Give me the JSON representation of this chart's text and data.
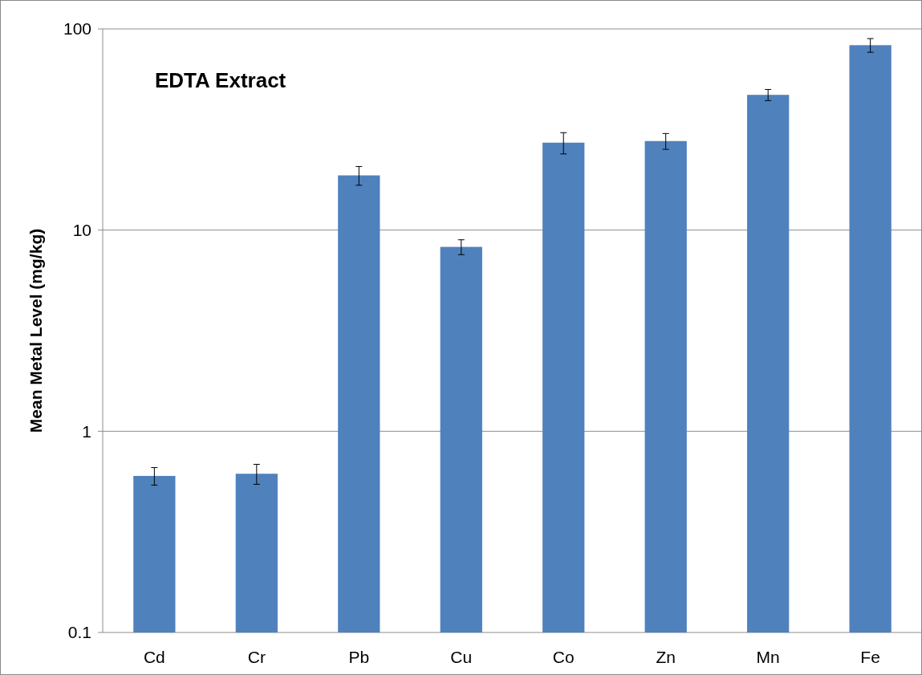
{
  "chart_data": {
    "type": "bar",
    "title": "EDTA Extract",
    "ylabel": "Mean Metal Level (mg/kg)",
    "categories": [
      "Cd",
      "Cr",
      "Pb",
      "Cu",
      "Co",
      "Zn",
      "Mn",
      "Fe"
    ],
    "values": [
      0.6,
      0.615,
      18.7,
      8.25,
      27.2,
      27.7,
      47,
      83
    ],
    "errors": [
      0.06,
      0.07,
      2,
      0.7,
      3.3,
      2.5,
      3,
      6.5
    ],
    "color": "#4f81bd",
    "log": true,
    "ylim": [
      0.1,
      100
    ],
    "yticks": [
      0.1,
      1,
      10,
      100
    ],
    "grid": "y"
  }
}
